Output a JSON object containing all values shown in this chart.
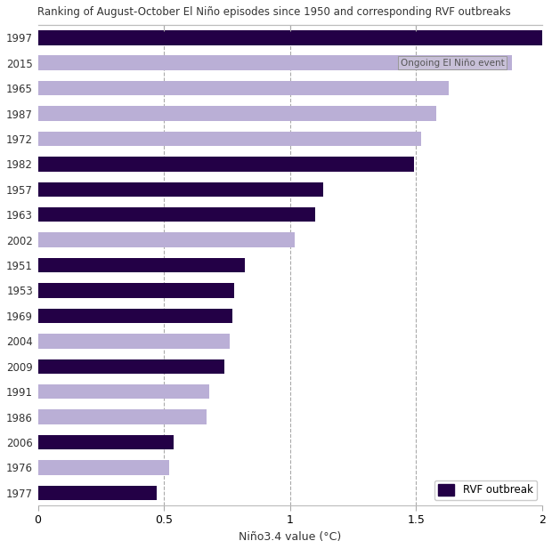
{
  "title": "Ranking of August-October El Niño episodes since 1950 and corresponding RVF outbreaks",
  "xlabel": "Niño3.4 value (°C)",
  "years": [
    "1997",
    "2015",
    "1965",
    "1987",
    "1972",
    "1982",
    "1957",
    "1963",
    "2002",
    "1951",
    "1953",
    "1969",
    "2004",
    "2009",
    "1991",
    "1986",
    "2006",
    "1976",
    "1977"
  ],
  "values": [
    2.0,
    1.88,
    1.63,
    1.58,
    1.52,
    1.49,
    1.13,
    1.1,
    1.02,
    0.82,
    0.78,
    0.77,
    0.76,
    0.74,
    0.68,
    0.67,
    0.54,
    0.52,
    0.47
  ],
  "rvf_outbreak": [
    true,
    false,
    false,
    false,
    false,
    true,
    true,
    true,
    false,
    true,
    true,
    true,
    false,
    true,
    false,
    false,
    true,
    false,
    true
  ],
  "ongoing": [
    false,
    true,
    false,
    false,
    false,
    false,
    false,
    false,
    false,
    false,
    false,
    false,
    false,
    false,
    false,
    false,
    false,
    false,
    false
  ],
  "color_rvf": "#230046",
  "color_no_rvf": "#baafd6",
  "color_ongoing_text_bg": "#c8c0d8",
  "xlim": [
    0,
    2.0
  ],
  "xticks": [
    0,
    0.5,
    1,
    1.5,
    2
  ],
  "xtick_labels": [
    "0",
    "0.5",
    "1",
    "1.5",
    "2"
  ],
  "dashed_lines": [
    0.5,
    1.0,
    1.5
  ],
  "legend_label": "RVF outbreak",
  "ongoing_label": "Ongoing El Niño event",
  "background_color": "#ffffff"
}
